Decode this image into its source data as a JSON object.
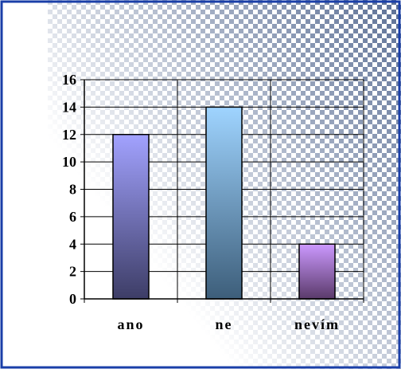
{
  "chart_data": {
    "type": "bar",
    "categories": [
      "ano",
      "ne",
      "nevím"
    ],
    "values": [
      12,
      14,
      4
    ],
    "ylim": [
      0,
      16
    ],
    "yticks": [
      0,
      2,
      4,
      6,
      8,
      10,
      12,
      14,
      16
    ],
    "grid": true,
    "legend": "none",
    "title": "",
    "xlabel": "",
    "ylabel": "",
    "colors": {
      "ano": [
        "#a2a2ff",
        "#3d3d66"
      ],
      "ne": [
        "#9fd4ff",
        "#3d5e7a"
      ],
      "nevim": [
        "#cc99ff",
        "#5a3a6a"
      ],
      "frame": "#1a3fa8",
      "pattern": "#5a6e96"
    }
  }
}
